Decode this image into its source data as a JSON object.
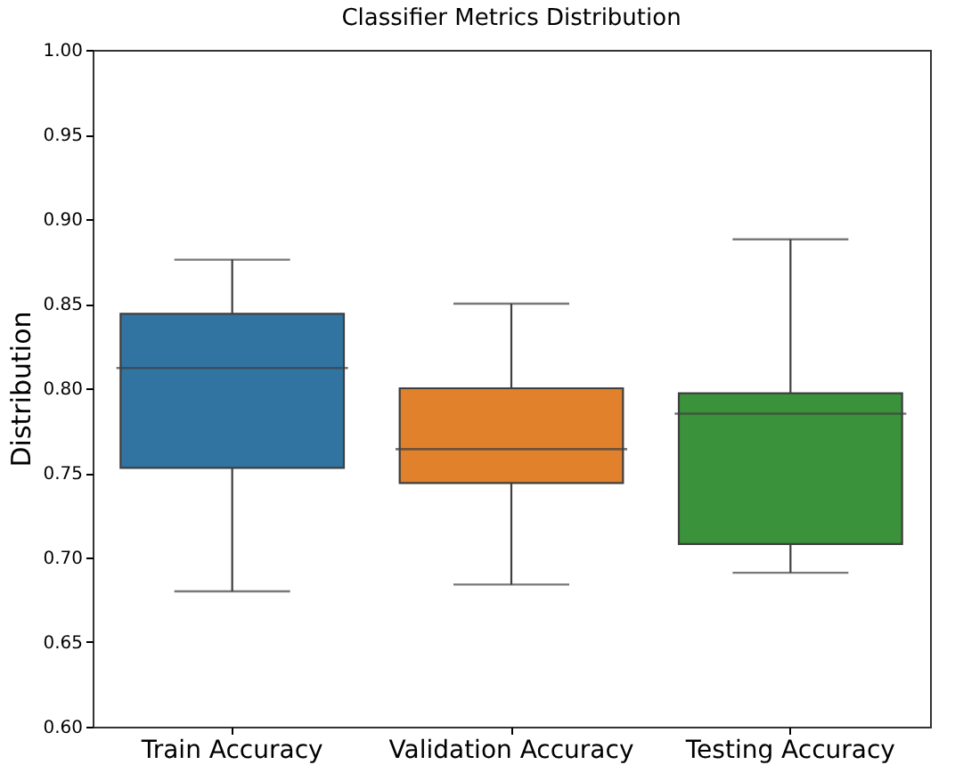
{
  "chart_data": {
    "type": "box",
    "title": "Classifier Metrics Distribution",
    "ylabel": "Distribution",
    "categories": [
      "Train Accuracy",
      "Validation Accuracy",
      "Testing Accuracy"
    ],
    "colors": [
      "#3274a1",
      "#e1812c",
      "#3a923a"
    ],
    "boxes": [
      {
        "low": 0.68,
        "q1": 0.753,
        "median": 0.812,
        "q3": 0.844,
        "high": 0.876
      },
      {
        "low": 0.684,
        "q1": 0.744,
        "median": 0.764,
        "q3": 0.8,
        "high": 0.85
      },
      {
        "low": 0.691,
        "q1": 0.708,
        "median": 0.785,
        "q3": 0.797,
        "high": 0.888
      }
    ],
    "ylim": [
      0.6,
      1.0
    ],
    "yticks": [
      {
        "value": 0.6,
        "label": "0.60"
      },
      {
        "value": 0.65,
        "label": "0.65"
      },
      {
        "value": 0.7,
        "label": "0.70"
      },
      {
        "value": 0.75,
        "label": "0.75"
      },
      {
        "value": 0.8,
        "label": "0.80"
      },
      {
        "value": 0.85,
        "label": "0.85"
      },
      {
        "value": 0.9,
        "label": "0.90"
      },
      {
        "value": 0.95,
        "label": "0.95"
      },
      {
        "value": 1.0,
        "label": "1.00"
      }
    ],
    "grid": false
  }
}
